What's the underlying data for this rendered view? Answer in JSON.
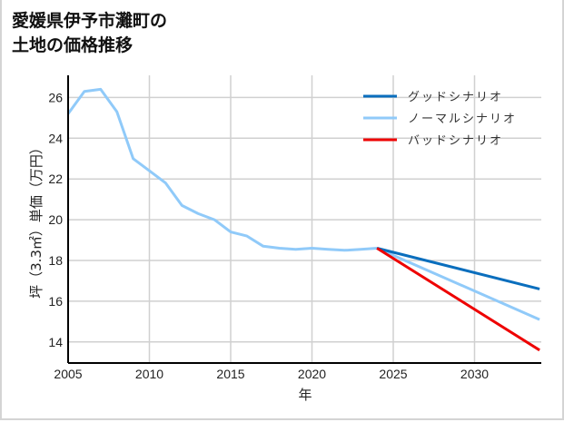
{
  "title_line1": "愛媛県伊予市灘町の",
  "title_line2": "土地の価格推移",
  "chart_data": {
    "type": "line",
    "title": "愛媛県伊予市灘町の土地の価格推移",
    "xlabel": "年",
    "ylabel": "坪（3.3㎡）単価（万円）",
    "xlim": [
      2005,
      2034
    ],
    "ylim": [
      13,
      27
    ],
    "x_ticks": [
      2005,
      2010,
      2015,
      2020,
      2025,
      2030
    ],
    "y_ticks": [
      14,
      16,
      18,
      20,
      22,
      24,
      26
    ],
    "grid": true,
    "legend_position": "upper right",
    "series": [
      {
        "name": "グッドシナリオ",
        "color": "#0a6ebd",
        "x": [
          2024,
          2034
        ],
        "values": [
          18.6,
          16.6
        ]
      },
      {
        "name": "ノーマルシナリオ",
        "color": "#90caf9",
        "x": [
          2005,
          2006,
          2007,
          2008,
          2009,
          2010,
          2011,
          2012,
          2013,
          2014,
          2015,
          2016,
          2017,
          2018,
          2019,
          2020,
          2021,
          2022,
          2023,
          2024,
          2034
        ],
        "values": [
          25.2,
          26.3,
          26.4,
          25.3,
          23.0,
          22.4,
          21.8,
          20.7,
          20.3,
          20.0,
          19.4,
          19.2,
          18.7,
          18.6,
          18.55,
          18.6,
          18.55,
          18.5,
          18.55,
          18.6,
          15.1
        ]
      },
      {
        "name": "バッドシナリオ",
        "color": "#ee0000",
        "x": [
          2024,
          2034
        ],
        "values": [
          18.6,
          13.6
        ]
      }
    ]
  }
}
